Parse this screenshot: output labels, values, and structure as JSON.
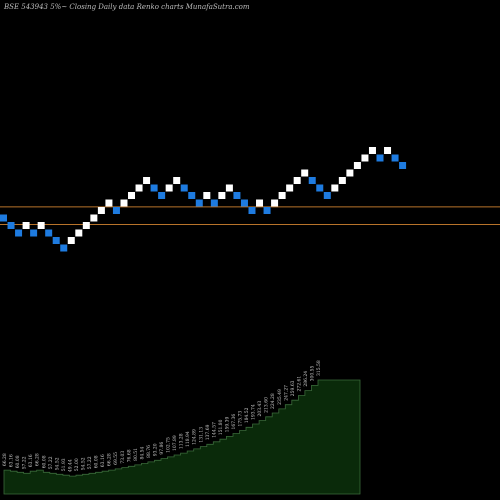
{
  "title": "BSE 543943 5%~  Closing Daily data  Renko  charts MunafaSutra.com",
  "colors": {
    "background": "#000000",
    "up_brick": "#ffffff",
    "down_brick": "#1e7be0",
    "reference_line": "#b8732a",
    "area_fill": "#0a2a0a",
    "area_stroke": "#3a6a3a",
    "label": "#cfcfcf"
  },
  "chart_data": [
    {
      "type": "renko",
      "bricks": [
        {
          "level": 0,
          "dir": "down"
        },
        {
          "level": -1,
          "dir": "down"
        },
        {
          "level": -2,
          "dir": "down"
        },
        {
          "level": -1,
          "dir": "up"
        },
        {
          "level": -2,
          "dir": "down"
        },
        {
          "level": -1,
          "dir": "up"
        },
        {
          "level": -2,
          "dir": "down"
        },
        {
          "level": -3,
          "dir": "down"
        },
        {
          "level": -4,
          "dir": "down"
        },
        {
          "level": -3,
          "dir": "up"
        },
        {
          "level": -2,
          "dir": "up"
        },
        {
          "level": -1,
          "dir": "up"
        },
        {
          "level": 0,
          "dir": "up"
        },
        {
          "level": 1,
          "dir": "up"
        },
        {
          "level": 2,
          "dir": "up"
        },
        {
          "level": 1,
          "dir": "down"
        },
        {
          "level": 2,
          "dir": "up"
        },
        {
          "level": 3,
          "dir": "up"
        },
        {
          "level": 4,
          "dir": "up"
        },
        {
          "level": 5,
          "dir": "up"
        },
        {
          "level": 4,
          "dir": "down"
        },
        {
          "level": 3,
          "dir": "down"
        },
        {
          "level": 4,
          "dir": "up"
        },
        {
          "level": 5,
          "dir": "up"
        },
        {
          "level": 4,
          "dir": "down"
        },
        {
          "level": 3,
          "dir": "down"
        },
        {
          "level": 2,
          "dir": "down"
        },
        {
          "level": 3,
          "dir": "up"
        },
        {
          "level": 2,
          "dir": "down"
        },
        {
          "level": 3,
          "dir": "up"
        },
        {
          "level": 4,
          "dir": "up"
        },
        {
          "level": 3,
          "dir": "down"
        },
        {
          "level": 2,
          "dir": "down"
        },
        {
          "level": 1,
          "dir": "down"
        },
        {
          "level": 2,
          "dir": "up"
        },
        {
          "level": 1,
          "dir": "down"
        },
        {
          "level": 2,
          "dir": "up"
        },
        {
          "level": 3,
          "dir": "up"
        },
        {
          "level": 4,
          "dir": "up"
        },
        {
          "level": 5,
          "dir": "up"
        },
        {
          "level": 6,
          "dir": "up"
        },
        {
          "level": 5,
          "dir": "down"
        },
        {
          "level": 4,
          "dir": "down"
        },
        {
          "level": 3,
          "dir": "down"
        },
        {
          "level": 4,
          "dir": "up"
        },
        {
          "level": 5,
          "dir": "up"
        },
        {
          "level": 6,
          "dir": "up"
        },
        {
          "level": 7,
          "dir": "up"
        },
        {
          "level": 8,
          "dir": "up"
        },
        {
          "level": 9,
          "dir": "up"
        },
        {
          "level": 8,
          "dir": "down"
        },
        {
          "level": 9,
          "dir": "up"
        },
        {
          "level": 8,
          "dir": "down"
        },
        {
          "level": 7,
          "dir": "down"
        }
      ],
      "reference_levels": [
        1.55,
        -0.8
      ]
    },
    {
      "type": "area",
      "value_labels": [
        "66.28",
        "63.16",
        "60.08",
        "57.22",
        "63.16",
        "66.28",
        "60.08",
        "57.22",
        "54.52",
        "51.93",
        "49.44",
        "52.00",
        "54.52",
        "57.22",
        "60.08",
        "63.16",
        "66.28",
        "69.55",
        "73.03",
        "76.68",
        "80.51",
        "84.54",
        "88.76",
        "93.20",
        "97.86",
        "102.75",
        "107.89",
        "113.28",
        "118.94",
        "124.89",
        "131.13",
        "137.69",
        "144.57",
        "151.80",
        "159.39",
        "167.36",
        "175.73",
        "184.52",
        "193.74",
        "203.43",
        "213.60",
        "224.28",
        "235.49",
        "247.27",
        "259.63",
        "272.61",
        "286.24",
        "300.55",
        "315.58"
      ],
      "values": [
        66.28,
        63.16,
        60.08,
        57.22,
        63.16,
        66.28,
        60.08,
        57.22,
        54.52,
        51.93,
        49.44,
        52.0,
        54.52,
        57.22,
        60.08,
        63.16,
        66.28,
        69.55,
        73.03,
        76.68,
        80.51,
        84.54,
        88.76,
        93.2,
        97.86,
        102.75,
        107.89,
        113.28,
        118.94,
        124.89,
        131.13,
        137.69,
        144.57,
        151.8,
        159.39,
        167.36,
        175.73,
        184.52,
        193.74,
        203.43,
        213.6,
        224.28,
        235.49,
        247.27,
        259.63,
        272.61,
        286.24,
        300.55,
        315.58
      ]
    }
  ]
}
